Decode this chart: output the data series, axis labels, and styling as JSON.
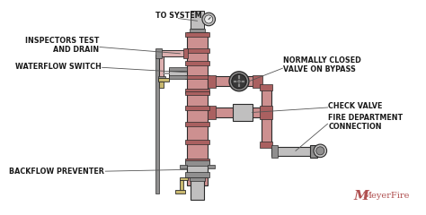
{
  "bg_color": "#ffffff",
  "pipe_pink": "#cd9090",
  "pipe_pink_light": "#ddb0b0",
  "pipe_pink_dark": "#aa6060",
  "pipe_gray": "#c0bfbf",
  "pipe_gray_dark": "#908f8f",
  "pipe_gray_light": "#d8d7d7",
  "pipe_beige": "#c8b870",
  "pipe_white": "#e8e8e8",
  "outline": "#2a2a2a",
  "text_color": "#1a1a1a",
  "meyer_color": "#b05050",
  "line_color": "#555555",
  "labels": {
    "to_system": "TO SYSTEM",
    "inspectors_test": "INSPECTORS TEST\nAND DRAIN",
    "waterflow": "WATERFLOW SWITCH",
    "normally_closed": "NORMALLY CLOSED\nVALVE ON BYPASS",
    "check_valve": "CHECK VALVE",
    "fire_dept": "FIRE DEPARTMENT\nCONNECTION",
    "backflow": "BACKFLOW PREVENTER",
    "meyer_m": "M",
    "meyerfire": "MeyerFire"
  },
  "figsize": [
    4.74,
    2.4
  ],
  "dpi": 100
}
